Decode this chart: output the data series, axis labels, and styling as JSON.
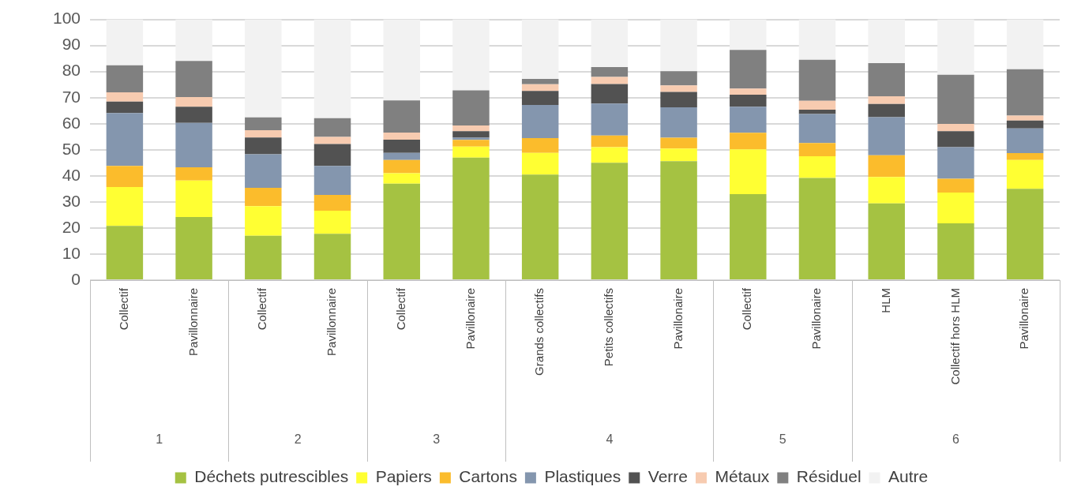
{
  "chart_data": {
    "type": "bar",
    "stacked": true,
    "categories": [
      "Collectif",
      "Pavillonnaire",
      "Collectif",
      "Pavillonnaire",
      "Collectif",
      "Pavillonaire",
      "Grands collectifs",
      "Petits collectifs",
      "Pavillonaire",
      "Collectif",
      "Pavillonaire",
      "HLM",
      "Collectif hors HLM",
      "Pavillonaire"
    ],
    "series": [
      {
        "name": "Déchets putrescibles",
        "color": "#a5c242",
        "values": [
          20.8,
          24.2,
          17.0,
          17.8,
          37.0,
          47.0,
          40.5,
          45.0,
          45.6,
          33.0,
          39.2,
          29.4,
          21.8,
          35.0
        ]
      },
      {
        "name": "Papiers",
        "color": "#ffff33",
        "values": [
          14.9,
          14.0,
          11.4,
          8.8,
          4.0,
          4.2,
          8.3,
          6.0,
          4.9,
          17.2,
          8.3,
          10.2,
          11.8,
          11.1
        ]
      },
      {
        "name": "Cartons",
        "color": "#fbbc2c",
        "values": [
          8.1,
          5.1,
          7.0,
          6.1,
          5.1,
          2.6,
          5.7,
          4.5,
          4.1,
          6.3,
          5.1,
          8.3,
          5.3,
          2.6
        ]
      },
      {
        "name": "Plastiques",
        "color": "#8496ae",
        "values": [
          20.3,
          17.0,
          12.9,
          11.1,
          2.7,
          0.8,
          12.7,
          12.2,
          11.7,
          10.0,
          11.1,
          14.6,
          12.1,
          9.5
        ]
      },
      {
        "name": "Verre",
        "color": "#525252",
        "values": [
          4.4,
          6.2,
          6.4,
          8.4,
          5.1,
          2.5,
          5.4,
          7.5,
          5.9,
          4.6,
          1.7,
          5.1,
          6.1,
          3.0
        ]
      },
      {
        "name": "Métaux",
        "color": "#f7cbb0",
        "values": [
          3.5,
          3.7,
          2.8,
          2.7,
          2.7,
          2.2,
          2.5,
          2.7,
          2.5,
          2.4,
          3.4,
          2.9,
          2.8,
          1.9
        ]
      },
      {
        "name": "Résiduel",
        "color": "#808080",
        "values": [
          10.4,
          13.9,
          4.9,
          7.2,
          12.3,
          13.5,
          2.1,
          3.8,
          5.4,
          14.8,
          15.7,
          12.7,
          18.9,
          17.8
        ]
      },
      {
        "name": "Autre",
        "color": "#f2f2f2",
        "values": [
          17.6,
          15.9,
          37.6,
          37.9,
          31.1,
          27.2,
          22.8,
          18.3,
          19.9,
          11.7,
          15.5,
          16.8,
          21.2,
          19.1
        ]
      }
    ],
    "ylim": [
      0,
      100
    ],
    "yticks": [
      0,
      10,
      20,
      30,
      40,
      50,
      60,
      70,
      80,
      90,
      100
    ],
    "grid": "y",
    "legend": "bottom",
    "annotations": [
      "1",
      "2",
      "3",
      "4",
      "5",
      "6"
    ]
  }
}
